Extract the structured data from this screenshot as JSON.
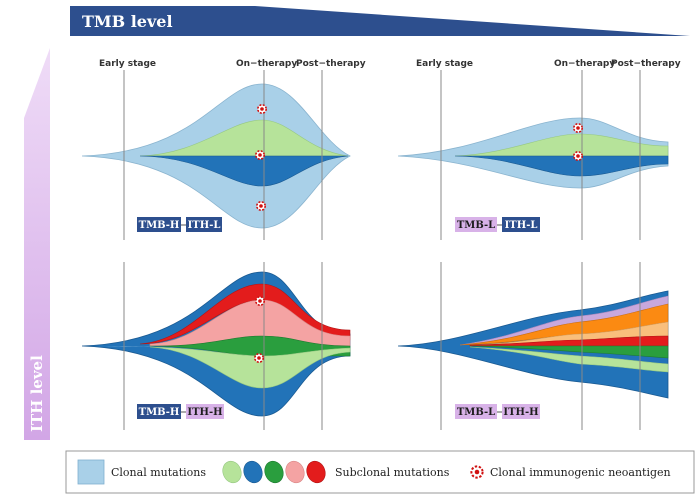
{
  "header": {
    "title": "TMB level"
  },
  "side": {
    "title": "ITH level"
  },
  "stages": {
    "early": "Early stage",
    "on": "On−therapy",
    "post": "Post−therapy"
  },
  "panels": [
    {
      "id": "top-left",
      "tmb": "TMB-H",
      "ith": "ITH-L"
    },
    {
      "id": "top-right",
      "tmb": "TMB-L",
      "ith": "ITH-L"
    },
    {
      "id": "bottom-left",
      "tmb": "TMB-H",
      "ith": "ITH-H"
    },
    {
      "id": "bottom-right",
      "tmb": "TMB-L",
      "ith": "ITH-H"
    }
  ],
  "legend": {
    "clonal": "Clonal mutations",
    "subclonal": "Subclonal mutations",
    "neoantigen": "Clonal immunogenic neoantigen"
  },
  "colors": {
    "navy": "#2d4f8e",
    "lilac": "#d8b2e8",
    "clonal": "#a9d0e8",
    "green_light": "#b6e39a",
    "blue": "#2273b8",
    "green": "#2a9e3e",
    "pink": "#f4a3a3",
    "red": "#e31c1c",
    "orange": "#fb8a12",
    "peach": "#f9bf7c",
    "purple": "#c8a8dc"
  }
}
